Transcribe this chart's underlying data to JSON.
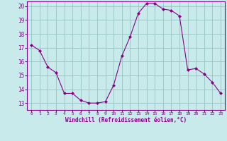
{
  "x": [
    0,
    1,
    2,
    3,
    4,
    5,
    6,
    7,
    8,
    9,
    10,
    11,
    12,
    13,
    14,
    15,
    16,
    17,
    18,
    19,
    20,
    21,
    22,
    23
  ],
  "y": [
    17.2,
    16.8,
    15.6,
    15.2,
    13.7,
    13.7,
    13.2,
    13.0,
    13.0,
    13.1,
    14.3,
    16.4,
    17.8,
    19.5,
    20.2,
    20.2,
    19.8,
    19.7,
    19.3,
    15.4,
    15.5,
    15.1,
    14.5,
    13.7
  ],
  "line_color": "#880088",
  "marker": "D",
  "marker_size": 2.0,
  "bg_color": "#c8eaea",
  "grid_color": "#9ec8c8",
  "xlabel": "Windchill (Refroidissement éolien,°C)",
  "xlabel_color": "#880088",
  "tick_color": "#880088",
  "ylim_min": 13,
  "ylim_max": 20,
  "xlim_min": 0,
  "xlim_max": 23,
  "yticks": [
    13,
    14,
    15,
    16,
    17,
    18,
    19,
    20
  ],
  "xticks": [
    0,
    1,
    2,
    3,
    4,
    5,
    6,
    7,
    8,
    9,
    10,
    11,
    12,
    13,
    14,
    15,
    16,
    17,
    18,
    19,
    20,
    21,
    22,
    23
  ]
}
